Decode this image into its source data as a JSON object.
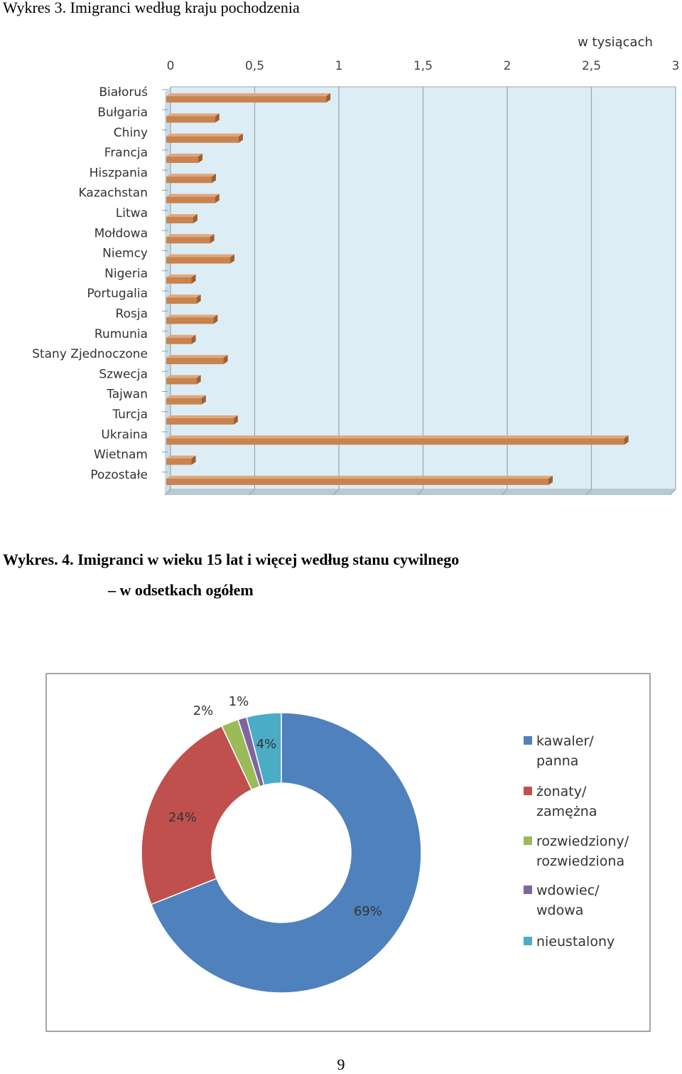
{
  "page": {
    "figure3_title": "Wykres 3. Imigranci według kraju pochodzenia",
    "figure4_title": "Wykres. 4. Imigranci w wieku 15 lat i więcej według stanu cywilnego",
    "figure4_subtitle": "– w odsetkach ogółem",
    "page_number": "9"
  },
  "chart_data": [
    {
      "type": "bar",
      "orientation": "horizontal",
      "unit_label": "w tysiącach",
      "xlim": [
        0,
        3
      ],
      "ticks": [
        "0",
        "0,5",
        "1",
        "1,5",
        "2",
        "2,5",
        "3"
      ],
      "tick_values": [
        0,
        0.5,
        1,
        1.5,
        2,
        2.5,
        3
      ],
      "grid": true,
      "categories": [
        "Białoruś",
        "Bułgaria",
        "Chiny",
        "Francja",
        "Hiszpania",
        "Kazachstan",
        "Litwa",
        "Mołdowa",
        "Niemcy",
        "Nigeria",
        "Portugalia",
        "Rosja",
        "Rumunia",
        "Stany Zjednoczone",
        "Szwecja",
        "Tajwan",
        "Turcja",
        "Ukraina",
        "Wietnam",
        "Pozostałe"
      ],
      "values": [
        0.95,
        0.29,
        0.43,
        0.19,
        0.27,
        0.29,
        0.16,
        0.26,
        0.38,
        0.15,
        0.18,
        0.28,
        0.15,
        0.34,
        0.18,
        0.21,
        0.4,
        2.72,
        0.15,
        2.27
      ],
      "bar_color": "#c8834f",
      "plot_bg": "#dcedf5"
    },
    {
      "type": "pie",
      "style": "donut",
      "categories": [
        "kawaler/\npanna",
        "żonaty/\nzamężna",
        "rozwiedziony/\nrozwiedziona",
        "wdowiec/\nwdowa",
        "nieustalony"
      ],
      "values": [
        69,
        24,
        2,
        1,
        4
      ],
      "data_labels": [
        "69%",
        "24%",
        "2%",
        "1%",
        "4%"
      ],
      "colors": [
        "#4f81bd",
        "#c0504d",
        "#9bbb59",
        "#8064a2",
        "#4bacc6"
      ],
      "legend_position": "right"
    }
  ]
}
